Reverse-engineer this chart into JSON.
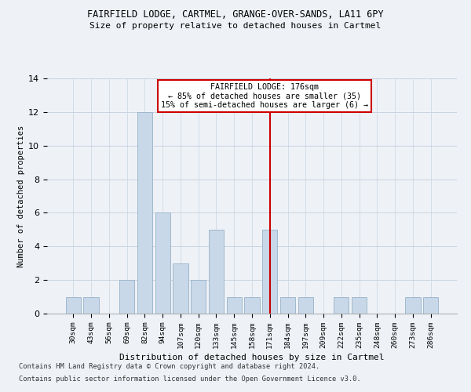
{
  "title1": "FAIRFIELD LODGE, CARTMEL, GRANGE-OVER-SANDS, LA11 6PY",
  "title2": "Size of property relative to detached houses in Cartmel",
  "xlabel": "Distribution of detached houses by size in Cartmel",
  "ylabel": "Number of detached properties",
  "categories": [
    "30sqm",
    "43sqm",
    "56sqm",
    "69sqm",
    "82sqm",
    "94sqm",
    "107sqm",
    "120sqm",
    "133sqm",
    "145sqm",
    "158sqm",
    "171sqm",
    "184sqm",
    "197sqm",
    "209sqm",
    "222sqm",
    "235sqm",
    "248sqm",
    "260sqm",
    "273sqm",
    "286sqm"
  ],
  "values": [
    1,
    1,
    0,
    2,
    12,
    6,
    3,
    2,
    5,
    1,
    1,
    5,
    1,
    1,
    0,
    1,
    1,
    0,
    0,
    1,
    1
  ],
  "bar_color": "#c8d8e8",
  "bar_edgecolor": "#a0b8cc",
  "redline_index": 11,
  "redline_label": "FAIRFIELD LODGE: 176sqm",
  "redline_note1": "← 85% of detached houses are smaller (35)",
  "redline_note2": "15% of semi-detached houses are larger (6) →",
  "redline_color": "#cc0000",
  "background_color": "#eef2f7",
  "grid_color": "#c8d4e0",
  "footnote1": "Contains HM Land Registry data © Crown copyright and database right 2024.",
  "footnote2": "Contains public sector information licensed under the Open Government Licence v3.0.",
  "ylim": [
    0,
    14
  ],
  "yticks": [
    0,
    2,
    4,
    6,
    8,
    10,
    12,
    14
  ]
}
